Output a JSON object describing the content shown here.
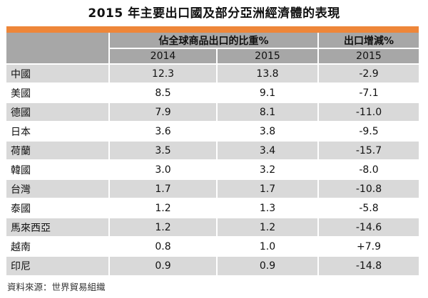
{
  "title": "2015 年主要出口國及部分亞洲經濟體的表現",
  "table": {
    "group_header": "佔全球商品出口的比重%",
    "growth_header": "出口增減%",
    "sub_headers": [
      "2014",
      "2015",
      "2015"
    ],
    "rows": [
      {
        "name": "中國",
        "share_2014": "12.3",
        "share_2015": "13.8",
        "growth_2015": "-2.9"
      },
      {
        "name": "美國",
        "share_2014": "8.5",
        "share_2015": "9.1",
        "growth_2015": "-7.1"
      },
      {
        "name": "德國",
        "share_2014": "7.9",
        "share_2015": "8.1",
        "growth_2015": "-11.0"
      },
      {
        "name": "日本",
        "share_2014": "3.6",
        "share_2015": "3.8",
        "growth_2015": "-9.5"
      },
      {
        "name": "荷蘭",
        "share_2014": "3.5",
        "share_2015": "3.4",
        "growth_2015": "-15.7"
      },
      {
        "name": "韓國",
        "share_2014": "3.0",
        "share_2015": "3.2",
        "growth_2015": "-8.0"
      },
      {
        "name": "台灣",
        "share_2014": "1.7",
        "share_2015": "1.7",
        "growth_2015": "-10.8"
      },
      {
        "name": "泰國",
        "share_2014": "1.2",
        "share_2015": "1.3",
        "growth_2015": "-5.8"
      },
      {
        "name": "馬來西亞",
        "share_2014": "1.2",
        "share_2015": "1.2",
        "growth_2015": "-14.6"
      },
      {
        "name": "越南",
        "share_2014": "0.8",
        "share_2015": "1.0",
        "growth_2015": "+7.9"
      },
      {
        "name": "印尼",
        "share_2014": "0.9",
        "share_2015": "0.9",
        "growth_2015": "-14.8"
      }
    ]
  },
  "footer": "資料來源：世界貿易組織",
  "colors": {
    "accent_orange": "#EE8639",
    "header_gray": "#A7A7A7",
    "row_alt_gray": "#D9D9D9"
  }
}
